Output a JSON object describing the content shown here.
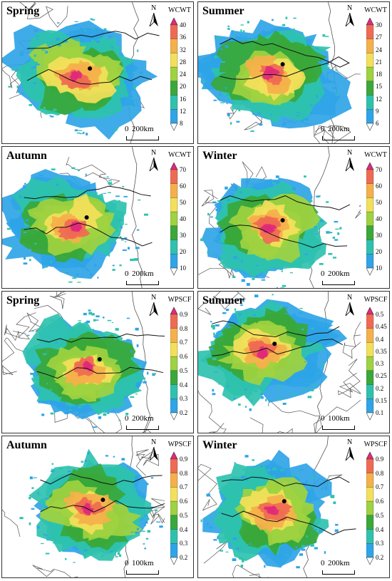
{
  "panels": [
    {
      "season": "Spring",
      "legend_title": "WCWT",
      "ticks": [
        "40",
        "36",
        "32",
        "28",
        "24",
        "20",
        "16",
        "12",
        "8"
      ],
      "scale": "200km",
      "palette": "wc",
      "pattern": "sp1",
      "dot": [
        0.54,
        0.47
      ]
    },
    {
      "season": "Summer",
      "legend_title": "WCWT",
      "ticks": [
        "30",
        "27",
        "24",
        "21",
        "18",
        "15",
        "12",
        "9",
        "6"
      ],
      "scale": "200km",
      "palette": "wc",
      "pattern": "su1",
      "dot": [
        0.52,
        0.44
      ]
    },
    {
      "season": "Autumn",
      "legend_title": "WCWT",
      "ticks": [
        "70",
        "60",
        "50",
        "40",
        "30",
        "20",
        "10"
      ],
      "scale": "200km",
      "palette": "wc",
      "pattern": "au1",
      "dot": [
        0.52,
        0.5
      ]
    },
    {
      "season": "Winter",
      "legend_title": "WCWT",
      "ticks": [
        "70",
        "60",
        "50",
        "40",
        "30",
        "20",
        "10"
      ],
      "scale": "200km",
      "palette": "wc",
      "pattern": "wi1",
      "dot": [
        0.52,
        0.52
      ]
    },
    {
      "season": "Spring",
      "legend_title": "WPSCF",
      "ticks": [
        "0.9",
        "0.8",
        "0.7",
        "0.6",
        "0.5",
        "0.4",
        "0.3",
        "0.2"
      ],
      "scale": "200km",
      "palette": "wp",
      "pattern": "sp2",
      "dot": [
        0.6,
        0.48
      ]
    },
    {
      "season": "Summer",
      "legend_title": "WPSCF",
      "ticks": [
        "0.5",
        "0.45",
        "0.4",
        "0.35",
        "0.3",
        "0.25",
        "0.2",
        "0.15",
        "0.1"
      ],
      "scale": "100km",
      "palette": "wp",
      "pattern": "su2",
      "dot": [
        0.47,
        0.37
      ]
    },
    {
      "season": "Autumn",
      "legend_title": "WPSCF",
      "ticks": [
        "0.9",
        "0.8",
        "0.7",
        "0.6",
        "0.5",
        "0.4",
        "0.3",
        "0.2"
      ],
      "scale": "100km",
      "palette": "wp",
      "pattern": "au2",
      "dot": [
        0.62,
        0.45
      ]
    },
    {
      "season": "Winter",
      "legend_title": "WPSCF",
      "ticks": [
        "0.9",
        "0.8",
        "0.7",
        "0.6",
        "0.5",
        "0.4",
        "0.3",
        "0.2"
      ],
      "scale": "200km",
      "palette": "wp",
      "pattern": "wi2",
      "dot": [
        0.53,
        0.46
      ]
    }
  ],
  "colors": {
    "levels": [
      "#ffffff",
      "#2fa4e7",
      "#2ec2ae",
      "#3aa83a",
      "#9fd240",
      "#f3e05a",
      "#f5b04a",
      "#ef6a52",
      "#e02a7a"
    ],
    "border": "#555555",
    "river": "#111111",
    "site": "#000000"
  }
}
